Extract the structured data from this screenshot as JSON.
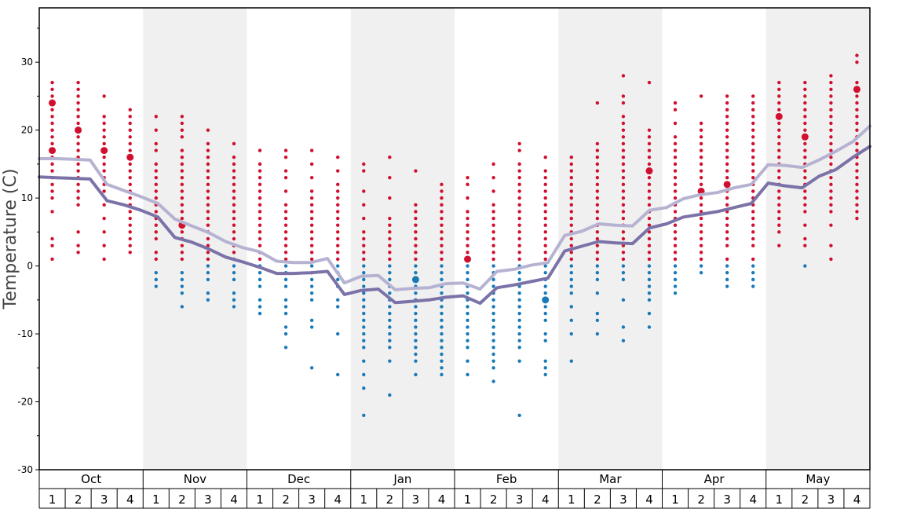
{
  "chart_data": {
    "type": "scatter",
    "ylabel": "Temperature (C)",
    "ylim": [
      -30,
      38
    ],
    "y_ticks": [
      -30,
      -20,
      -10,
      0,
      10,
      20,
      30
    ],
    "months": [
      "Oct",
      "Nov",
      "Dec",
      "Jan",
      "Feb",
      "Mar",
      "Apr",
      "May"
    ],
    "weeks": [
      "1",
      "2",
      "3",
      "4"
    ],
    "colors": {
      "warm": "#d0102e",
      "cold": "#1a7ab8",
      "high_line": "#b6b3d2",
      "low_line": "#7b72a8",
      "band": "#f0f0f0"
    },
    "series": [
      {
        "values": [
          15.8,
          15.8,
          15.7,
          15.6,
          12.0,
          11.1,
          10.2,
          9.2,
          6.9,
          5.9,
          4.9,
          3.6,
          2.7,
          2.1,
          0.7,
          0.5,
          0.5,
          1.1,
          -2.5,
          -1.5,
          -1.4,
          -3.5,
          -3.3,
          -3.2,
          -2.6,
          -2.5,
          -3.4,
          -0.8,
          -0.5,
          0.1,
          0.5,
          4.5,
          5.1,
          6.2,
          6.0,
          5.9,
          8.2,
          8.6,
          9.9,
          10.5,
          10.8,
          11.5,
          12.0,
          14.9,
          14.8,
          14.5,
          15.6,
          16.9,
          18.3,
          20.6
        ]
      },
      {
        "values": [
          13.1,
          13.0,
          12.9,
          12.8,
          9.6,
          9.0,
          8.2,
          7.2,
          4.2,
          3.5,
          2.5,
          1.3,
          0.6,
          -0.2,
          -1.1,
          -1.1,
          -1.0,
          -0.8,
          -4.2,
          -3.6,
          -3.4,
          -5.4,
          -5.2,
          -5.0,
          -4.6,
          -4.4,
          -5.5,
          -3.2,
          -2.8,
          -2.3,
          -1.8,
          2.2,
          2.9,
          3.6,
          3.4,
          3.3,
          5.6,
          6.2,
          7.2,
          7.6,
          8.0,
          8.6,
          9.2,
          12.2,
          11.8,
          11.5,
          13.2,
          14.2,
          16.0,
          17.6
        ]
      }
    ],
    "weekly_points": [
      {
        "week": 1,
        "values": [
          27,
          26,
          25,
          24,
          24,
          23,
          22,
          21,
          20,
          19,
          18,
          17,
          17,
          16,
          15,
          14,
          13,
          12,
          11,
          10,
          8,
          4,
          3,
          1
        ]
      },
      {
        "week": 2,
        "values": [
          27,
          26,
          25,
          24,
          23,
          22,
          21,
          20,
          20,
          19,
          18,
          17,
          16,
          15,
          14,
          13,
          12,
          11,
          10,
          9,
          5,
          3,
          2
        ]
      },
      {
        "week": 3,
        "values": [
          25,
          22,
          21,
          20,
          19,
          18,
          17,
          17,
          16,
          15,
          14,
          13,
          12,
          11,
          9,
          7,
          5,
          3,
          1
        ]
      },
      {
        "week": 4,
        "values": [
          23,
          22,
          21,
          20,
          19,
          18,
          17,
          16,
          16,
          15,
          14,
          13,
          12,
          11,
          10,
          9,
          8,
          7,
          6,
          5,
          4,
          3,
          2
        ]
      },
      {
        "week": 5,
        "values": [
          22,
          20,
          18,
          17,
          15,
          14,
          13,
          12,
          11,
          10,
          9,
          8,
          7,
          6,
          5,
          4,
          2,
          1,
          -1,
          -2,
          -3
        ]
      },
      {
        "week": 6,
        "values": [
          22,
          21,
          20,
          19,
          17,
          16,
          15,
          14,
          13,
          12,
          11,
          10,
          9,
          8,
          7,
          6,
          6,
          5,
          4,
          3,
          2,
          1,
          -1,
          -2,
          -3,
          -4,
          -6
        ]
      },
      {
        "week": 7,
        "values": [
          20,
          18,
          17,
          16,
          15,
          14,
          13,
          12,
          11,
          10,
          9,
          8,
          7,
          6,
          5,
          4,
          3,
          2,
          1,
          0,
          -1,
          -2,
          -4,
          -5
        ]
      },
      {
        "week": 8,
        "values": [
          18,
          16,
          15,
          14,
          13,
          12,
          11,
          10,
          9,
          8,
          7,
          6,
          5,
          4,
          3,
          2,
          1,
          0,
          -1,
          -2,
          -4,
          -5,
          -6
        ]
      },
      {
        "week": 9,
        "values": [
          17,
          15,
          14,
          13,
          12,
          11,
          10,
          9,
          8,
          7,
          6,
          5,
          4,
          3,
          2,
          1,
          0,
          -1,
          -2,
          -3,
          -5,
          -6,
          -7
        ]
      },
      {
        "week": 10,
        "values": [
          17,
          16,
          14,
          13,
          11,
          9,
          8,
          7,
          6,
          5,
          4,
          3,
          2,
          1,
          0,
          -1,
          -2,
          -3,
          -5,
          -6,
          -7,
          -9,
          -10,
          -12
        ]
      },
      {
        "week": 11,
        "values": [
          17,
          15,
          13,
          11,
          10,
          9,
          8,
          7,
          6,
          5,
          4,
          3,
          2,
          1,
          0,
          -1,
          -2,
          -3,
          -4,
          -5,
          -8,
          -9,
          -15
        ]
      },
      {
        "week": 12,
        "values": [
          16,
          14,
          12,
          11,
          10,
          9,
          8,
          7,
          6,
          5,
          4,
          3,
          2,
          1,
          0,
          -1,
          -2,
          -3,
          -5,
          -6,
          -10,
          -16
        ]
      },
      {
        "week": 13,
        "values": [
          15,
          14,
          11,
          9,
          7,
          5,
          4,
          3,
          2,
          1,
          0,
          -1,
          -2,
          -3,
          -4,
          -5,
          -6,
          -7,
          -8,
          -9,
          -10,
          -11,
          -12,
          -14,
          -16,
          -18,
          -22
        ]
      },
      {
        "week": 14,
        "values": [
          16,
          13,
          10,
          7,
          6,
          5,
          4,
          3,
          2,
          1,
          0,
          -1,
          -2,
          -3,
          -4,
          -5,
          -6,
          -7,
          -8,
          -9,
          -10,
          -11,
          -12,
          -14,
          -19
        ]
      },
      {
        "week": 15,
        "values": [
          14,
          9,
          8,
          7,
          6,
          5,
          4,
          3,
          2,
          1,
          0,
          -1,
          -2,
          -2,
          -3,
          -4,
          -5,
          -6,
          -7,
          -8,
          -9,
          -10,
          -11,
          -12,
          -13,
          -14,
          -16
        ]
      },
      {
        "week": 16,
        "values": [
          12,
          11,
          10,
          9,
          8,
          7,
          6,
          5,
          4,
          3,
          2,
          1,
          0,
          -1,
          -2,
          -3,
          -4,
          -5,
          -6,
          -7,
          -8,
          -9,
          -10,
          -11,
          -12,
          -13,
          -14,
          -15,
          -16
        ]
      },
      {
        "week": 17,
        "values": [
          13,
          12,
          10,
          8,
          7,
          6,
          5,
          4,
          3,
          2,
          1,
          1,
          0,
          -1,
          -2,
          -3,
          -4,
          -5,
          -6,
          -7,
          -8,
          -9,
          -10,
          -11,
          -12,
          -14,
          -16
        ]
      },
      {
        "week": 18,
        "values": [
          15,
          13,
          11,
          9,
          8,
          7,
          6,
          5,
          4,
          3,
          2,
          1,
          0,
          -1,
          -2,
          -3,
          -4,
          -5,
          -6,
          -7,
          -8,
          -9,
          -10,
          -11,
          -12,
          -13,
          -14,
          -15,
          -17
        ]
      },
      {
        "week": 19,
        "values": [
          18,
          17,
          15,
          14,
          13,
          12,
          11,
          10,
          9,
          8,
          7,
          6,
          5,
          4,
          3,
          2,
          1,
          0,
          -1,
          -2,
          -3,
          -4,
          -5,
          -6,
          -7,
          -8,
          -9,
          -10,
          -11,
          -12,
          -14,
          -22
        ]
      },
      {
        "week": 20,
        "values": [
          16,
          14,
          13,
          12,
          11,
          10,
          9,
          8,
          7,
          6,
          5,
          4,
          3,
          2,
          1,
          0,
          -1,
          -2,
          -3,
          -4,
          -5,
          -5,
          -6,
          -7,
          -8,
          -10,
          -11,
          -14,
          -15,
          -16
        ]
      },
      {
        "week": 21,
        "values": [
          16,
          15,
          14,
          13,
          12,
          11,
          10,
          9,
          8,
          7,
          6,
          5,
          4,
          3,
          2,
          1,
          0,
          -1,
          -2,
          -3,
          -4,
          -6,
          -8,
          -10,
          -14
        ]
      },
      {
        "week": 22,
        "values": [
          24,
          18,
          17,
          16,
          15,
          14,
          13,
          12,
          11,
          10,
          9,
          8,
          7,
          6,
          5,
          4,
          3,
          2,
          1,
          0,
          -1,
          -2,
          -4,
          -7,
          -8,
          -10
        ]
      },
      {
        "week": 23,
        "values": [
          28,
          25,
          24,
          22,
          21,
          20,
          19,
          18,
          17,
          16,
          15,
          14,
          13,
          12,
          11,
          10,
          9,
          8,
          7,
          6,
          5,
          4,
          3,
          2,
          1,
          0,
          -1,
          -2,
          -5,
          -9,
          -11
        ]
      },
      {
        "week": 24,
        "values": [
          27,
          20,
          19,
          18,
          17,
          16,
          15,
          14,
          14,
          13,
          12,
          11,
          10,
          9,
          8,
          7,
          6,
          5,
          4,
          3,
          2,
          1,
          0,
          -1,
          -2,
          -3,
          -4,
          -5,
          -7,
          -9
        ]
      },
      {
        "week": 25,
        "values": [
          24,
          23,
          21,
          19,
          18,
          17,
          16,
          15,
          14,
          13,
          12,
          11,
          10,
          9,
          8,
          7,
          6,
          5,
          4,
          3,
          2,
          1,
          0,
          -1,
          -2,
          -3,
          -4
        ]
      },
      {
        "week": 26,
        "values": [
          25,
          21,
          20,
          19,
          18,
          17,
          16,
          15,
          14,
          13,
          12,
          11,
          11,
          10,
          9,
          8,
          7,
          6,
          5,
          4,
          3,
          2,
          1,
          0,
          -1
        ]
      },
      {
        "week": 27,
        "values": [
          25,
          24,
          23,
          22,
          21,
          20,
          19,
          18,
          17,
          16,
          15,
          14,
          13,
          12,
          12,
          11,
          10,
          9,
          8,
          7,
          6,
          5,
          4,
          3,
          1,
          0,
          -1,
          -2,
          -3
        ]
      },
      {
        "week": 28,
        "values": [
          25,
          24,
          23,
          22,
          21,
          20,
          19,
          18,
          17,
          16,
          15,
          14,
          13,
          12,
          11,
          10,
          9,
          8,
          7,
          6,
          5,
          4,
          3,
          1,
          0,
          -1,
          -2,
          -3
        ]
      },
      {
        "week": 29,
        "values": [
          27,
          26,
          25,
          24,
          23,
          22,
          22,
          21,
          20,
          19,
          18,
          17,
          16,
          15,
          14,
          13,
          12,
          11,
          10,
          9,
          8,
          7,
          6,
          5,
          3
        ]
      },
      {
        "week": 30,
        "values": [
          27,
          26,
          25,
          24,
          23,
          22,
          21,
          20,
          19,
          19,
          18,
          17,
          16,
          15,
          14,
          13,
          12,
          11,
          10,
          9,
          8,
          6,
          4,
          3,
          0
        ]
      },
      {
        "week": 31,
        "values": [
          28,
          27,
          26,
          25,
          24,
          23,
          22,
          21,
          20,
          19,
          18,
          17,
          16,
          15,
          14,
          13,
          12,
          11,
          10,
          9,
          8,
          6,
          3,
          1
        ]
      },
      {
        "week": 32,
        "values": [
          31,
          30,
          27,
          26,
          26,
          25,
          24,
          23,
          22,
          21,
          20,
          19,
          18,
          17,
          16,
          15,
          14,
          13,
          12,
          11,
          10,
          9,
          8,
          7
        ]
      }
    ]
  }
}
